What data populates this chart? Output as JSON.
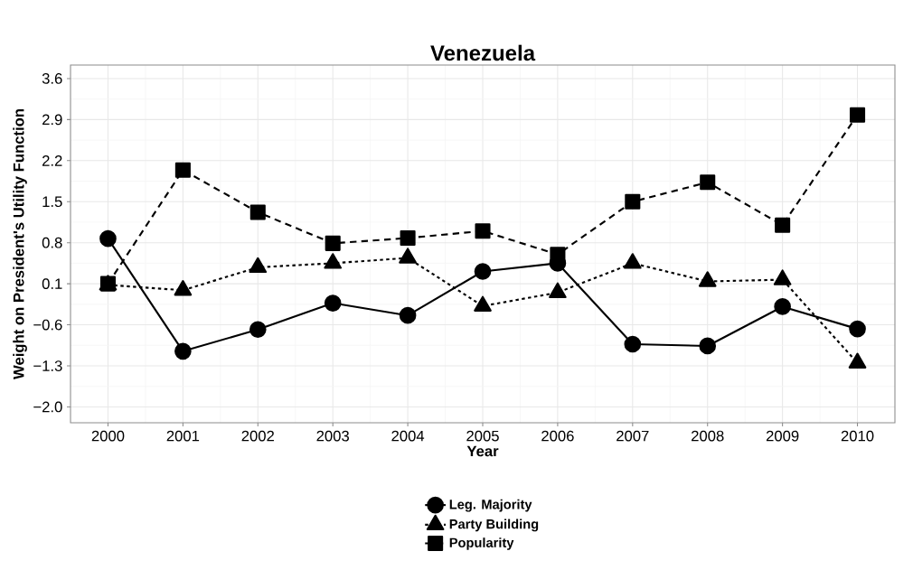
{
  "chart_data": {
    "type": "line",
    "title": "Venezuela",
    "xlabel": "Year",
    "ylabel": "Weight on President's Utility Function",
    "x": [
      2000,
      2001,
      2002,
      2003,
      2004,
      2005,
      2006,
      2007,
      2008,
      2009,
      2010
    ],
    "series": [
      {
        "name": "Leg. Majority",
        "color": "#000000",
        "marker": "circle",
        "line_style": "solid",
        "values": [
          0.87,
          -1.05,
          -0.68,
          -0.23,
          -0.44,
          0.31,
          0.45,
          -0.93,
          -0.96,
          -0.29,
          -0.67
        ]
      },
      {
        "name": "Party Building",
        "color": "#000000",
        "marker": "triangle",
        "line_style": "dotted",
        "values": [
          0.08,
          -0.01,
          0.38,
          0.45,
          0.54,
          -0.28,
          -0.05,
          0.45,
          0.14,
          0.17,
          -1.25
        ]
      },
      {
        "name": "Popularity",
        "color": "#000000",
        "marker": "square",
        "line_style": "dashed",
        "values": [
          0.1,
          2.04,
          1.32,
          0.79,
          0.88,
          1.0,
          0.6,
          1.5,
          1.83,
          1.1,
          2.98
        ]
      }
    ],
    "xlim": [
      1999.5,
      2010.5
    ],
    "ylim": [
      -2.27,
      3.83
    ],
    "xticks": [
      2000,
      2001,
      2002,
      2003,
      2004,
      2005,
      2006,
      2007,
      2008,
      2009,
      2010
    ],
    "yticks": [
      {
        "value": -2.0,
        "label": "−2.0"
      },
      {
        "value": -1.3,
        "label": "−1.3"
      },
      {
        "value": -0.6,
        "label": "−0.6"
      },
      0.1,
      0.8,
      1.5,
      2.2,
      2.9,
      3.6
    ],
    "grid": true,
    "legend": "bottom"
  }
}
